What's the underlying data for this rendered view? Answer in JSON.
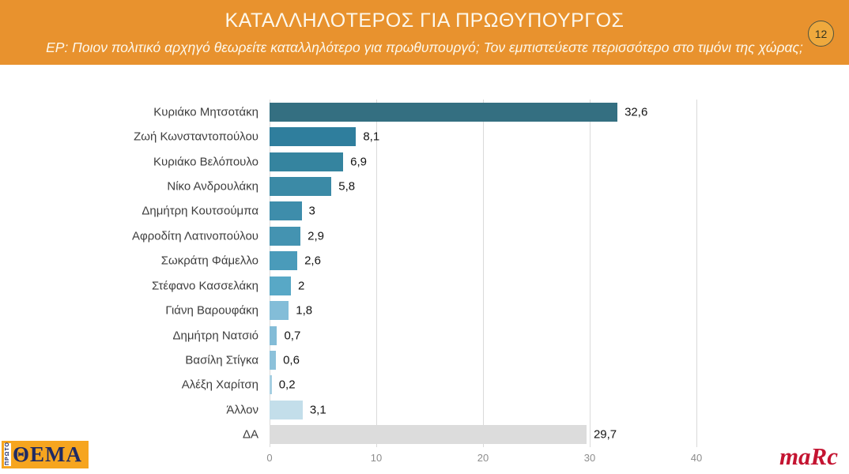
{
  "header": {
    "title": "ΚΑΤΑΛΛΗΛΟΤΕΡΟΣ ΓΙΑ ΠΡΩΘΥΠΟΥΡΓΟΣ",
    "subtitle": "ΕΡ: Ποιον πολιτικό αρχηγό θεωρείτε καταλληλότερο για πρωθυπουργό; Τον εμπιστεύεστε περισσότερο στο τιμόνι της χώρας;",
    "page_badge": "12",
    "background_color": "#e8922e"
  },
  "chart_data": {
    "type": "bar",
    "orientation": "horizontal",
    "title": "ΚΑΤΑΛΛΗΛΟΤΕΡΟΣ ΓΙΑ ΠΡΩΘΥΠΟΥΡΓΟΣ",
    "xlim": [
      0,
      40
    ],
    "x_ticks": [
      0,
      10,
      20,
      30,
      40
    ],
    "grid": true,
    "legend": false,
    "categories": [
      "Κυριάκο Μητσοτάκη",
      "Ζωή Κωνσταντοπούλου",
      "Κυριάκο Βελόπουλο",
      "Νίκο Ανδρουλάκη",
      "Δημήτρη Κουτσούμπα",
      "Αφροδίτη Λατινοπούλου",
      "Σωκράτη Φάμελλο",
      "Στέφανο Κασσελάκη",
      "Γιάνη Βαρουφάκη",
      "Δημήτρη Νατσιό",
      "Βασίλη Στίγκα",
      "Αλέξη Χαρίτση",
      "Άλλον",
      "ΔΑ"
    ],
    "values": [
      32.6,
      8.1,
      6.9,
      5.8,
      3,
      2.9,
      2.6,
      2,
      1.8,
      0.7,
      0.6,
      0.2,
      3.1,
      29.7
    ],
    "value_labels": [
      "32,6",
      "8,1",
      "6,9",
      "5,8",
      "3",
      "2,9",
      "2,6",
      "2",
      "1,8",
      "0,7",
      "0,6",
      "0,2",
      "3,1",
      "29,7"
    ],
    "bar_colors": [
      "#346f81",
      "#2f7e9d",
      "#35849f",
      "#3b8aa6",
      "#3e8dab",
      "#4493b1",
      "#4a9bba",
      "#58a8c6",
      "#83bdd8",
      "#83bcd7",
      "#8cc1da",
      "#a6cfe2",
      "#c3deea",
      "#dcdcdc"
    ],
    "gridline_color": "#dadada"
  },
  "footer": {
    "publisher_logo_prefix": "ΠΡΩΤΟ",
    "publisher_logo_name": "ΘΕΜΑ",
    "agency_logo": "maRc"
  }
}
